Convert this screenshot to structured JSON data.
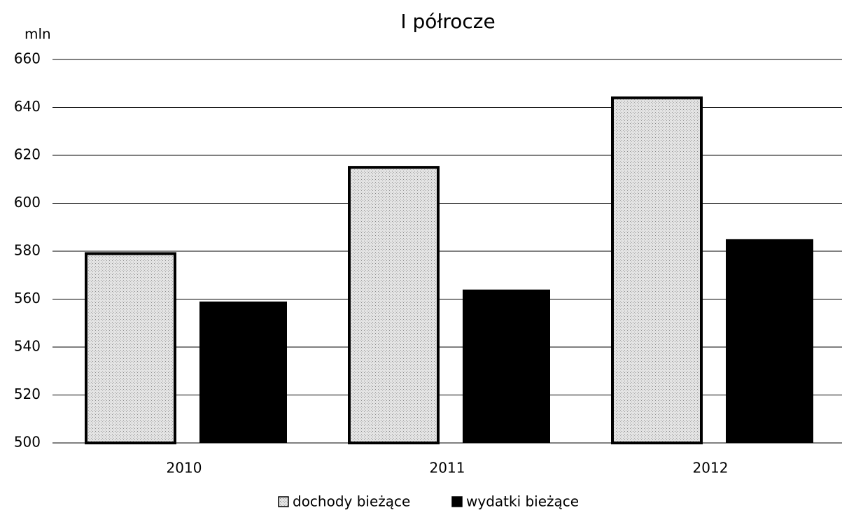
{
  "chart_data": {
    "type": "bar",
    "title": "I półrocze",
    "y_label": "mln",
    "categories": [
      "2010",
      "2011",
      "2012"
    ],
    "series": [
      {
        "name": "dochody bieżące",
        "color": "#d9d9d9",
        "values": [
          579,
          615,
          644
        ]
      },
      {
        "name": "wydatki bieżące",
        "color": "#000000",
        "values": [
          559,
          564,
          585
        ]
      }
    ],
    "ylim": [
      500,
      660
    ],
    "yticks": [
      500,
      520,
      540,
      560,
      580,
      600,
      620,
      640,
      660
    ],
    "grid": true,
    "legend": "bottom"
  }
}
